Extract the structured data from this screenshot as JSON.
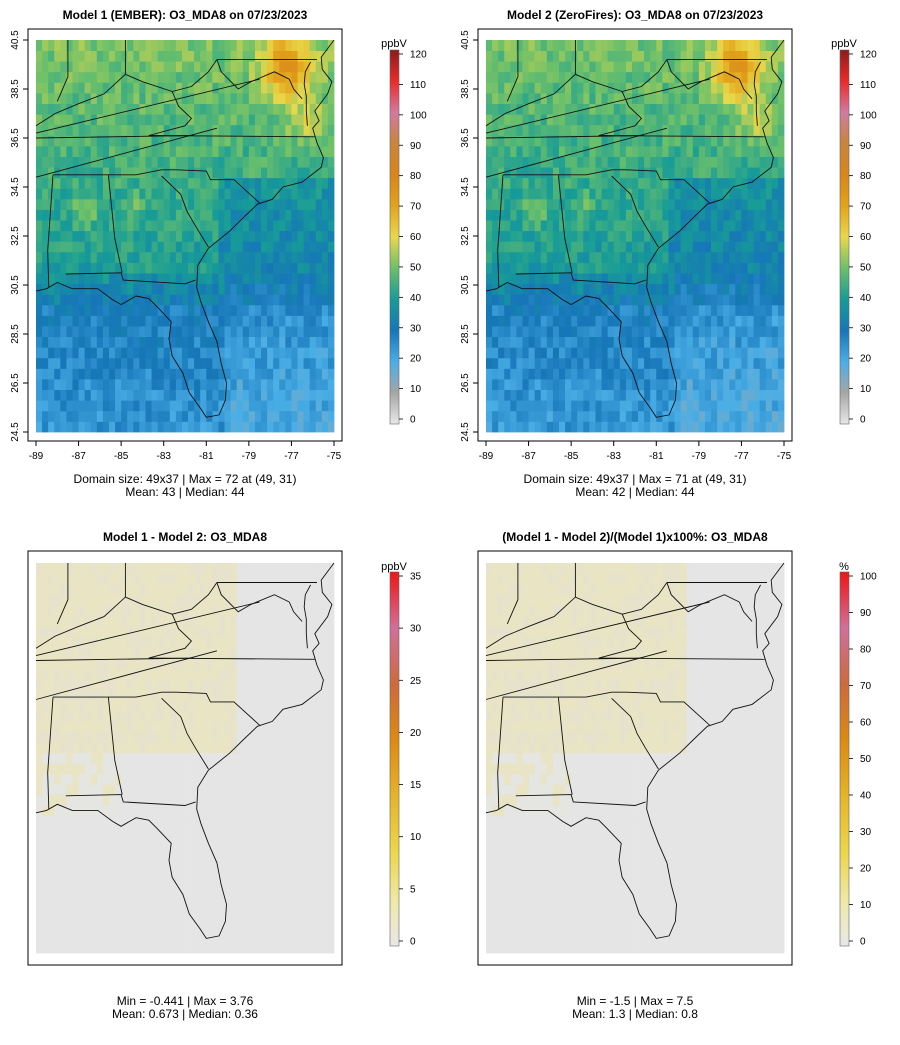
{
  "chart_data": [
    {
      "type": "heatmap",
      "title": "Model 1 (EMBER): O3_MDA8 on 07/23/2023",
      "x_ticks": [
        "-89",
        "-87",
        "-85",
        "-83",
        "-81",
        "-79",
        "-77",
        "-75"
      ],
      "y_ticks": [
        "24.5",
        "26.5",
        "28.5",
        "30.5",
        "32.5",
        "34.5",
        "36.5",
        "38.5",
        "40.5"
      ],
      "xlim": [
        -89,
        -75
      ],
      "ylim": [
        24.5,
        40.5
      ],
      "colorbar_unit": "ppbV",
      "colorbar_ticks": [
        "0",
        "10",
        "20",
        "30",
        "40",
        "50",
        "60",
        "70",
        "80",
        "90",
        "100",
        "110",
        "120"
      ],
      "colorbar_range": [
        0,
        120
      ],
      "domain_size": "49x37",
      "max_location": [
        49,
        31
      ],
      "stats_line1": "Domain size: 49x37 | Max = 72 at (49, 31)",
      "stats_line2": "Mean: 43 |  Median: 44",
      "max": 72,
      "mean": 43,
      "median": 44
    },
    {
      "type": "heatmap",
      "title": "Model 2 (ZeroFires): O3_MDA8 on 07/23/2023",
      "x_ticks": [
        "-89",
        "-87",
        "-85",
        "-83",
        "-81",
        "-79",
        "-77",
        "-75"
      ],
      "y_ticks": [
        "24.5",
        "26.5",
        "28.5",
        "30.5",
        "32.5",
        "34.5",
        "36.5",
        "38.5",
        "40.5"
      ],
      "xlim": [
        -89,
        -75
      ],
      "ylim": [
        24.5,
        40.5
      ],
      "colorbar_unit": "ppbV",
      "colorbar_ticks": [
        "0",
        "10",
        "20",
        "30",
        "40",
        "50",
        "60",
        "70",
        "80",
        "90",
        "100",
        "110",
        "120"
      ],
      "colorbar_range": [
        0,
        120
      ],
      "domain_size": "49x37",
      "max_location": [
        49,
        31
      ],
      "stats_line1": "Domain size: 49x37 | Max = 71 at (49, 31)",
      "stats_line2": "Mean: 42 |  Median: 44",
      "max": 71,
      "mean": 42,
      "median": 44
    },
    {
      "type": "heatmap",
      "title": "Model 1 - Model 2: O3_MDA8",
      "colorbar_unit": "ppbV",
      "colorbar_ticks": [
        "0",
        "5",
        "10",
        "15",
        "20",
        "25",
        "30",
        "35"
      ],
      "colorbar_range": [
        0,
        35
      ],
      "stats_line1": "Min = -0.441 | Max = 3.76",
      "stats_line2": "Mean: 0.673 |  Median: 0.36",
      "min": -0.441,
      "max": 3.76,
      "mean": 0.673,
      "median": 0.36
    },
    {
      "type": "heatmap",
      "title": "(Model 1 - Model 2)/(Model 1)x100%: O3_MDA8",
      "colorbar_unit": "%",
      "colorbar_ticks": [
        "0",
        "10",
        "20",
        "30",
        "40",
        "50",
        "60",
        "70",
        "80",
        "90",
        "100"
      ],
      "colorbar_range": [
        0,
        100
      ],
      "stats_line1": "Min = -1.5 | Max = 7.5",
      "stats_line2": "Mean: 1.3 |  Median: 0.8",
      "min": -1.5,
      "max": 7.5,
      "mean": 1.3,
      "median": 0.8
    }
  ]
}
